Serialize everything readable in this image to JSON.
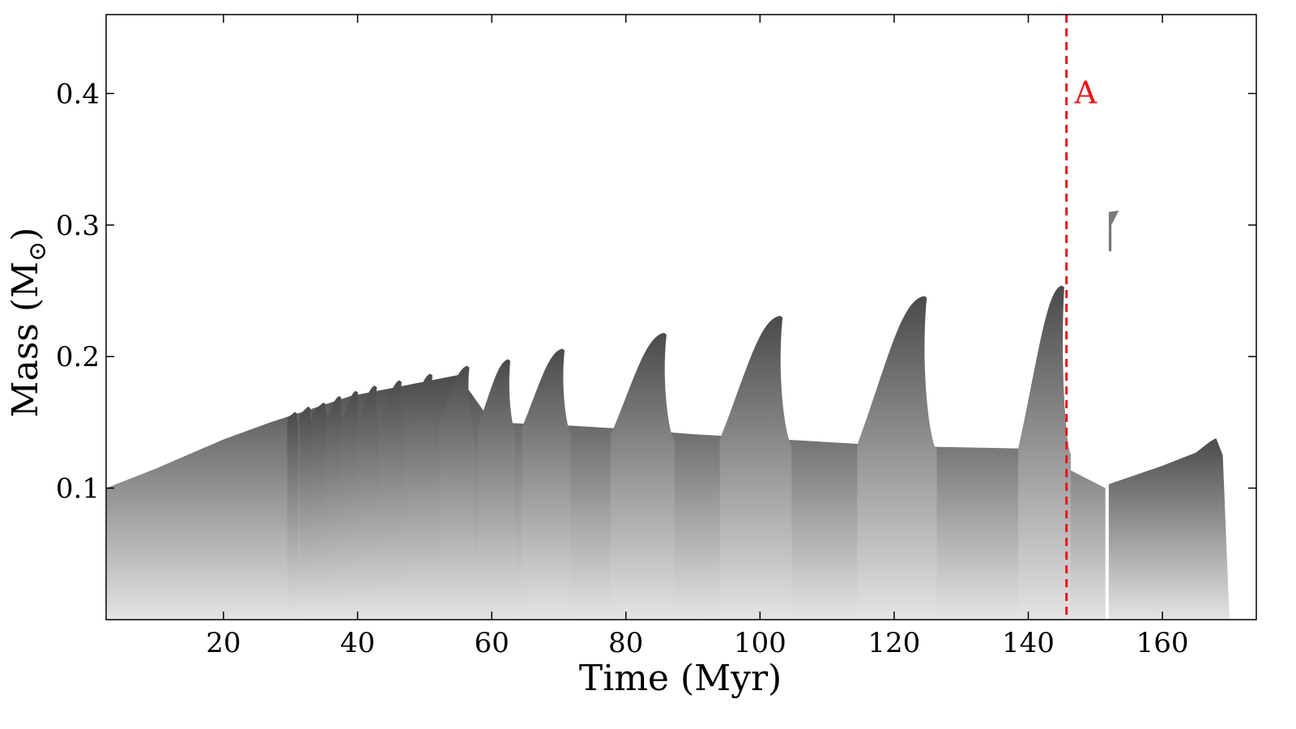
{
  "chart_data": {
    "type": "area",
    "title": "",
    "xlabel": "Time (Myr)",
    "ylabel": "Mass (M",
    "ylabel_sub": "⊙",
    "ylabel_close": ")",
    "xlim": [
      2.5,
      174
    ],
    "ylim": [
      0.0,
      0.46
    ],
    "xticks": [
      20,
      40,
      60,
      80,
      100,
      120,
      140,
      160
    ],
    "xtick_labels": [
      "20",
      "40",
      "60",
      "80",
      "100",
      "120",
      "140",
      "160"
    ],
    "yticks": [
      0.1,
      0.2,
      0.3,
      0.4
    ],
    "ytick_labels": [
      "0.1",
      "0.2",
      "0.3",
      "0.4"
    ],
    "grid": false,
    "colors": {
      "fill_dark": "#5e5e5e",
      "fill_light": "#e2e2e2",
      "marker": "#e8141b"
    },
    "marker": {
      "x": 145.7,
      "label": "A"
    },
    "convective_boundary": [
      [
        2.5,
        0.1
      ],
      [
        10,
        0.115
      ],
      [
        20,
        0.137
      ],
      [
        27,
        0.15
      ],
      [
        33,
        0.16
      ],
      [
        39,
        0.17
      ],
      [
        45,
        0.176
      ],
      [
        50,
        0.181
      ],
      [
        55,
        0.186
      ],
      [
        60,
        0.15
      ],
      [
        70,
        0.148
      ],
      [
        80,
        0.145
      ],
      [
        90,
        0.141
      ],
      [
        100,
        0.138
      ],
      [
        110,
        0.135
      ],
      [
        120,
        0.132
      ],
      [
        130,
        0.131
      ],
      [
        140,
        0.13
      ],
      [
        151.5,
        0.1
      ]
    ],
    "flashes": [
      {
        "t0": 29.5,
        "m0": 0.153,
        "t1": 30.6,
        "m1": 0.158
      },
      {
        "t0": 31.3,
        "m0": 0.155,
        "t1": 32.6,
        "m1": 0.162
      },
      {
        "t0": 33.2,
        "m0": 0.157,
        "t1": 34.9,
        "m1": 0.165
      },
      {
        "t0": 35.3,
        "m0": 0.152,
        "t1": 37.2,
        "m1": 0.17
      },
      {
        "t0": 37.6,
        "m0": 0.151,
        "t1": 39.7,
        "m1": 0.174
      },
      {
        "t0": 40.0,
        "m0": 0.15,
        "t1": 42.5,
        "m1": 0.178
      },
      {
        "t0": 43.4,
        "m0": 0.15,
        "t1": 46.2,
        "m1": 0.182
      },
      {
        "t0": 47.6,
        "m0": 0.15,
        "t1": 50.8,
        "m1": 0.187
      },
      {
        "t0": 52.1,
        "m0": 0.15,
        "t1": 56.3,
        "m1": 0.193
      },
      {
        "t0": 58.0,
        "m0": 0.148,
        "t1": 62.4,
        "m1": 0.198
      },
      {
        "t0": 64.5,
        "m0": 0.146,
        "t1": 70.5,
        "m1": 0.206
      },
      {
        "t0": 77.7,
        "m0": 0.14,
        "t1": 85.7,
        "m1": 0.218
      },
      {
        "t0": 94.0,
        "m0": 0.137,
        "t1": 103.0,
        "m1": 0.231
      },
      {
        "t0": 114.5,
        "m0": 0.133,
        "t1": 124.5,
        "m1": 0.246
      },
      {
        "t0": 138.5,
        "m0": 0.13,
        "t1": 145.0,
        "m1": 0.254
      }
    ],
    "core_boundary": [
      [
        152,
        0.103
      ],
      [
        160,
        0.117
      ],
      [
        165,
        0.127
      ],
      [
        167,
        0.135
      ],
      [
        168,
        0.138
      ],
      [
        169,
        0.125
      ],
      [
        170,
        0.0
      ]
    ],
    "upper_core": {
      "t": 152,
      "m": 0.31
    }
  }
}
